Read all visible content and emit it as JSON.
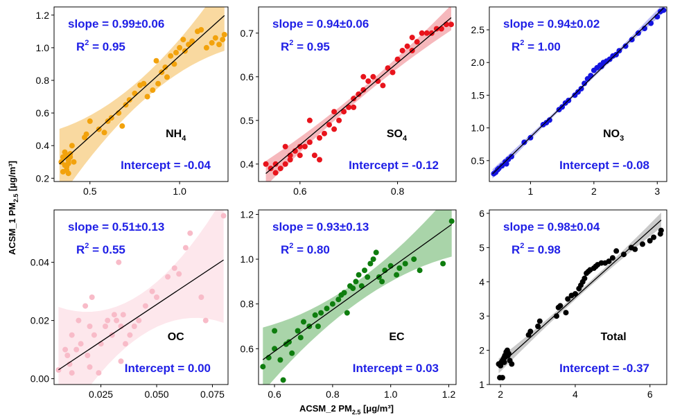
{
  "figure": {
    "xlabel": "ACSM_2 PM",
    "xlabel_sub": "2.5",
    "xlabel_unit": " [μg/m³]",
    "ylabel": "ACSM_1 PM",
    "ylabel_sub": "2.5",
    "ylabel_unit": " [μg/m³]",
    "r2_prefix": "R",
    "r2_sup": "2"
  },
  "chart_data": [
    {
      "type": "scatter",
      "panel_label": "NH",
      "panel_label_sub": "4",
      "slope_text": "slope = 0.99±0.06",
      "r2_value": " = 0.95",
      "intercept_text": "Intercept = -0.04",
      "color": "#f2a20c",
      "band_color": "#f7c978",
      "xlim": [
        0.3,
        1.27
      ],
      "ylim": [
        0.18,
        1.25
      ],
      "xticks": [
        0.5,
        1.0
      ],
      "xtick_labels": [
        "0.5",
        "1.0"
      ],
      "yticks": [
        0.2,
        0.4,
        0.6,
        0.8,
        1.0,
        1.2
      ],
      "ytick_labels": [
        "0.2",
        "0.4",
        "0.6",
        "0.8",
        "1.0",
        "1.2"
      ],
      "fit": {
        "slope": 0.99,
        "intercept": -0.04,
        "x_range": [
          0.33,
          1.25
        ],
        "band": 0.06
      },
      "x": [
        0.34,
        0.35,
        0.36,
        0.37,
        0.38,
        0.39,
        0.4,
        0.35,
        0.37,
        0.38,
        0.36,
        0.39,
        0.41,
        0.38,
        0.37,
        0.47,
        0.48,
        0.5,
        0.55,
        0.58,
        0.6,
        0.62,
        0.66,
        0.68,
        0.7,
        0.72,
        0.75,
        0.78,
        0.8,
        0.82,
        0.85,
        0.87,
        0.88,
        0.9,
        0.92,
        0.93,
        0.95,
        0.97,
        0.98,
        1.0,
        1.02,
        1.03,
        1.05,
        1.07,
        1.1,
        1.12,
        1.15,
        1.18,
        1.2,
        1.22,
        1.25,
        1.24
      ],
      "y": [
        0.3,
        0.33,
        0.28,
        0.25,
        0.31,
        0.35,
        0.4,
        0.24,
        0.27,
        0.29,
        0.36,
        0.33,
        0.3,
        0.23,
        0.34,
        0.45,
        0.47,
        0.55,
        0.5,
        0.48,
        0.55,
        0.57,
        0.6,
        0.52,
        0.65,
        0.68,
        0.72,
        0.77,
        0.78,
        0.7,
        0.74,
        0.92,
        0.78,
        0.85,
        0.88,
        0.82,
        0.95,
        0.9,
        0.97,
        1.0,
        1.05,
        0.98,
        1.02,
        1.04,
        1.1,
        1.11,
        1.0,
        1.03,
        1.06,
        1.02,
        1.08,
        1.05
      ]
    },
    {
      "type": "scatter",
      "panel_label": "SO",
      "panel_label_sub": "4",
      "slope_text": "slope = 0.94±0.06",
      "r2_value": " = 0.95",
      "intercept_text": "Intercept = -0.12",
      "color": "#e8141c",
      "band_color": "#f29aa0",
      "xlim": [
        0.515,
        0.92
      ],
      "ylim": [
        0.36,
        0.76
      ],
      "xticks": [
        0.6,
        0.8
      ],
      "xtick_labels": [
        "0.6",
        "0.8"
      ],
      "yticks": [
        0.4,
        0.5,
        0.6,
        0.7
      ],
      "ytick_labels": [
        "0.4",
        "0.5",
        "0.6",
        "0.7"
      ],
      "fit": {
        "slope": 0.94,
        "intercept": -0.12,
        "x_range": [
          0.53,
          0.91
        ],
        "band": 0.008
      },
      "x": [
        0.53,
        0.54,
        0.55,
        0.56,
        0.57,
        0.58,
        0.59,
        0.6,
        0.61,
        0.62,
        0.63,
        0.64,
        0.65,
        0.66,
        0.67,
        0.68,
        0.69,
        0.7,
        0.71,
        0.72,
        0.73,
        0.74,
        0.75,
        0.76,
        0.77,
        0.78,
        0.79,
        0.8,
        0.81,
        0.82,
        0.83,
        0.84,
        0.85,
        0.86,
        0.87,
        0.88,
        0.89,
        0.9,
        0.91,
        0.62,
        0.64,
        0.58,
        0.57,
        0.55,
        0.6,
        0.67,
        0.71,
        0.73,
        0.83
      ],
      "y": [
        0.4,
        0.39,
        0.38,
        0.39,
        0.4,
        0.41,
        0.43,
        0.44,
        0.44,
        0.45,
        0.42,
        0.41,
        0.47,
        0.49,
        0.48,
        0.5,
        0.52,
        0.53,
        0.55,
        0.56,
        0.57,
        0.59,
        0.6,
        0.59,
        0.58,
        0.62,
        0.61,
        0.64,
        0.66,
        0.67,
        0.69,
        0.68,
        0.7,
        0.7,
        0.7,
        0.71,
        0.71,
        0.72,
        0.72,
        0.5,
        0.46,
        0.42,
        0.44,
        0.4,
        0.42,
        0.52,
        0.53,
        0.6,
        0.66
      ]
    },
    {
      "type": "scatter",
      "panel_label": "NO",
      "panel_label_sub": "3",
      "slope_text": "slope = 0.94±0.02",
      "r2_value": " = 1.00",
      "intercept_text": "Intercept = -0.08",
      "color": "#1414e0",
      "band_color": "#9a9af2",
      "xlim": [
        0.35,
        3.15
      ],
      "ylim": [
        0.18,
        2.85
      ],
      "xticks": [
        1,
        2,
        3
      ],
      "xtick_labels": [
        "1",
        "2",
        "3"
      ],
      "yticks": [
        0.5,
        1.0,
        1.5,
        2.0,
        2.5
      ],
      "ytick_labels": [
        "0.5",
        "1.0",
        "1.5",
        "2.0",
        "2.5"
      ],
      "fit": {
        "slope": 0.94,
        "intercept": -0.08,
        "x_range": [
          0.4,
          3.1
        ],
        "band": 0.02
      },
      "x": [
        0.42,
        0.45,
        0.5,
        0.55,
        0.6,
        0.65,
        0.7,
        0.9,
        1.0,
        1.2,
        1.25,
        1.3,
        1.45,
        1.5,
        1.6,
        1.7,
        1.75,
        1.8,
        1.85,
        1.9,
        1.95,
        2.0,
        2.05,
        2.1,
        2.15,
        2.2,
        2.25,
        2.3,
        2.35,
        2.4,
        2.5,
        2.6,
        2.7,
        2.8,
        2.9,
        3.0,
        3.05,
        3.1,
        0.48,
        0.62,
        1.55,
        2.12
      ],
      "y": [
        0.3,
        0.32,
        0.38,
        0.42,
        0.48,
        0.52,
        0.56,
        0.78,
        0.85,
        1.05,
        1.08,
        1.12,
        1.28,
        1.32,
        1.42,
        1.5,
        1.55,
        1.6,
        1.68,
        1.75,
        1.8,
        1.88,
        1.92,
        1.96,
        2.0,
        2.02,
        2.05,
        2.1,
        2.12,
        2.18,
        2.25,
        2.35,
        2.45,
        2.52,
        2.6,
        2.7,
        2.78,
        2.8,
        0.36,
        0.45,
        1.38,
        1.94
      ]
    },
    {
      "type": "scatter",
      "panel_label": "OC",
      "panel_label_sub": "",
      "slope_text": "slope = 0.51±0.13",
      "r2_value": " = 0.55",
      "intercept_text": "Intercept = 0.00",
      "color": "#f8bbc8",
      "band_color": "#fcdde4",
      "xlim": [
        0.004,
        0.082
      ],
      "ylim": [
        -0.002,
        0.058
      ],
      "xticks": [
        0.025,
        0.05,
        0.075
      ],
      "xtick_labels": [
        "0.025",
        "0.050",
        "0.075"
      ],
      "yticks": [
        0.0,
        0.02,
        0.04
      ],
      "ytick_labels": [
        "0.00",
        "0.02",
        "0.04"
      ],
      "fit": {
        "slope": 0.51,
        "intercept": 0.0,
        "x_range": [
          0.006,
          0.08
        ],
        "band": 0.006
      },
      "x": [
        0.006,
        0.009,
        0.01,
        0.011,
        0.012,
        0.014,
        0.015,
        0.016,
        0.018,
        0.019,
        0.02,
        0.021,
        0.022,
        0.024,
        0.025,
        0.027,
        0.028,
        0.03,
        0.031,
        0.032,
        0.033,
        0.034,
        0.035,
        0.036,
        0.038,
        0.04,
        0.042,
        0.045,
        0.048,
        0.05,
        0.055,
        0.058,
        0.06,
        0.063,
        0.065,
        0.07,
        0.072,
        0.08,
        0.012,
        0.02,
        0.034
      ],
      "y": [
        0.003,
        0.01,
        0.008,
        0.005,
        0.015,
        0.01,
        0.02,
        0.012,
        0.025,
        0.008,
        0.018,
        0.028,
        0.015,
        0.002,
        0.012,
        0.018,
        0.02,
        0.015,
        0.022,
        0.02,
        0.04,
        0.018,
        0.022,
        0.012,
        0.015,
        0.018,
        0.02,
        0.025,
        0.03,
        0.028,
        0.035,
        0.038,
        0.036,
        0.045,
        0.05,
        0.028,
        0.02,
        0.056,
        0.002,
        0.004,
        0.006
      ]
    },
    {
      "type": "scatter",
      "panel_label": "EC",
      "panel_label_sub": "",
      "slope_text": "slope = 0.93±0.13",
      "r2_value": " = 0.80",
      "intercept_text": "Intercept = 0.03",
      "color": "#0e7d0e",
      "band_color": "#85c285",
      "xlim": [
        0.545,
        1.225
      ],
      "ylim": [
        0.44,
        1.22
      ],
      "xticks": [
        0.6,
        0.8,
        1.0,
        1.2
      ],
      "xtick_labels": [
        "0.6",
        "0.8",
        "1.0",
        "1.2"
      ],
      "yticks": [
        0.6,
        0.8,
        1.0,
        1.2
      ],
      "ytick_labels": [
        "0.6",
        "0.8",
        "1.0",
        "1.2"
      ],
      "fit": {
        "slope": 0.93,
        "intercept": 0.03,
        "x_range": [
          0.56,
          1.21
        ],
        "band": 0.04
      },
      "x": [
        0.56,
        0.58,
        0.6,
        0.62,
        0.63,
        0.65,
        0.66,
        0.68,
        0.7,
        0.72,
        0.74,
        0.76,
        0.78,
        0.8,
        0.82,
        0.84,
        0.85,
        0.86,
        0.88,
        0.89,
        0.9,
        0.91,
        0.92,
        0.93,
        0.94,
        0.95,
        0.96,
        0.98,
        1.0,
        1.02,
        1.05,
        1.08,
        1.1,
        1.18,
        1.21,
        0.64,
        0.69,
        0.75,
        0.83,
        0.87,
        0.97,
        1.03,
        0.6
      ],
      "y": [
        0.52,
        0.56,
        0.6,
        0.55,
        0.46,
        0.63,
        0.58,
        0.68,
        0.72,
        0.7,
        0.75,
        0.76,
        0.78,
        0.8,
        0.82,
        0.85,
        0.76,
        0.88,
        0.9,
        0.93,
        0.88,
        0.95,
        0.92,
        0.98,
        1.0,
        1.03,
        0.92,
        0.95,
        0.97,
        0.93,
        0.98,
        1.0,
        0.95,
        0.98,
        1.17,
        0.62,
        0.65,
        0.7,
        0.84,
        0.87,
        0.9,
        0.96,
        0.68
      ]
    },
    {
      "type": "scatter",
      "panel_label": "Total",
      "panel_label_sub": "",
      "slope_text": "slope = 0.98±0.04",
      "r2_value": " = 0.98",
      "intercept_text": "Intercept = -0.37",
      "color": "#000000",
      "band_color": "#b4b4b4",
      "xlim": [
        1.7,
        6.45
      ],
      "ylim": [
        1.0,
        6.1
      ],
      "xticks": [
        2,
        4,
        6
      ],
      "xtick_labels": [
        "2",
        "4",
        "6"
      ],
      "yticks": [
        1,
        2,
        3,
        4,
        5,
        6
      ],
      "ytick_labels": [
        "1",
        "2",
        "3",
        "4",
        "5",
        "6"
      ],
      "fit": {
        "slope": 0.98,
        "intercept": -0.37,
        "x_range": [
          1.95,
          6.3
        ],
        "band": 0.06
      },
      "x": [
        1.95,
        2.0,
        2.02,
        2.05,
        2.08,
        2.1,
        2.12,
        2.15,
        2.18,
        2.2,
        2.22,
        2.25,
        2.3,
        2.75,
        2.8,
        3.0,
        3.05,
        3.5,
        3.55,
        3.6,
        3.75,
        3.8,
        3.9,
        4.0,
        4.1,
        4.15,
        4.2,
        4.25,
        4.3,
        4.35,
        4.4,
        4.5,
        4.55,
        4.6,
        4.7,
        4.8,
        4.9,
        5.0,
        5.1,
        5.3,
        5.5,
        5.6,
        5.8,
        6.0,
        6.1,
        6.3,
        6.28,
        1.98,
        2.05,
        2.1,
        2.15
      ],
      "y": [
        1.6,
        1.55,
        1.65,
        1.7,
        1.75,
        1.8,
        1.85,
        1.95,
        2.0,
        1.85,
        1.9,
        1.7,
        1.6,
        2.45,
        2.55,
        2.7,
        2.85,
        3.0,
        3.25,
        3.3,
        3.1,
        3.5,
        3.6,
        3.65,
        3.8,
        3.9,
        4.0,
        4.1,
        4.25,
        4.3,
        4.35,
        4.4,
        4.45,
        4.5,
        4.55,
        4.55,
        4.6,
        4.7,
        4.9,
        4.8,
        5.0,
        4.95,
        5.1,
        5.2,
        5.3,
        5.5,
        5.4,
        1.2,
        1.2,
        1.65,
        1.9
      ]
    }
  ]
}
